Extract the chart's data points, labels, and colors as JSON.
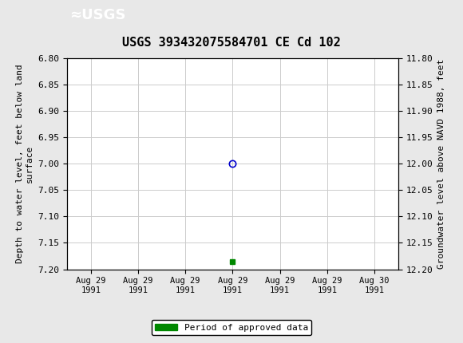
{
  "title": "USGS 393432075584701 CE Cd 102",
  "ylabel_left": "Depth to water level, feet below land\nsurface",
  "ylabel_right": "Groundwater level above NAVD 1988, feet",
  "ylim_left": [
    6.8,
    7.2
  ],
  "ylim_right": [
    11.8,
    12.2
  ],
  "yticks_left": [
    6.8,
    6.85,
    6.9,
    6.95,
    7.0,
    7.05,
    7.1,
    7.15,
    7.2
  ],
  "yticks_right": [
    11.8,
    11.85,
    11.9,
    11.95,
    12.0,
    12.05,
    12.1,
    12.15,
    12.2
  ],
  "xlim": [
    -0.5,
    6.5
  ],
  "xtick_labels": [
    "Aug 29\n1991",
    "Aug 29\n1991",
    "Aug 29\n1991",
    "Aug 29\n1991",
    "Aug 29\n1991",
    "Aug 29\n1991",
    "Aug 30\n1991"
  ],
  "xtick_positions": [
    0,
    1,
    2,
    3,
    4,
    5,
    6
  ],
  "data_point_x": 3.0,
  "data_point_y": 7.0,
  "data_point_color": "#0000cc",
  "approved_point_x": 3.0,
  "approved_point_y": 7.185,
  "approved_color": "#008800",
  "grid_color": "#cccccc",
  "background_color": "#e8e8e8",
  "plot_bg_color": "#ffffff",
  "usgs_header_color": "#1a6e2e",
  "title_fontsize": 11,
  "tick_fontsize": 8,
  "label_fontsize": 8,
  "legend_fontsize": 8
}
